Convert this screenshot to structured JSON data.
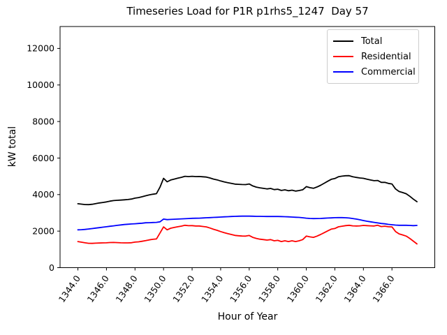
{
  "chart_data": {
    "type": "line",
    "title": "Timeseries Load for P1R p1rhs5_1247  Day 57",
    "xlabel": "Hour of Year",
    "ylabel": "kW total",
    "xlim": [
      1342.75,
      1369.0
    ],
    "ylim": [
      0,
      13200
    ],
    "x_ticks": [
      1344,
      1346,
      1348,
      1350,
      1352,
      1354,
      1356,
      1358,
      1360,
      1362,
      1364,
      1366
    ],
    "x_tick_labels": [
      "1344.0",
      "1346.0",
      "1348.0",
      "1350.0",
      "1352.0",
      "1354.0",
      "1356.0",
      "1358.0",
      "1360.0",
      "1362.0",
      "1364.0",
      "1366.0"
    ],
    "y_ticks": [
      0,
      2000,
      4000,
      6000,
      8000,
      10000,
      12000
    ],
    "y_tick_labels": [
      "0",
      "2000",
      "4000",
      "6000",
      "8000",
      "10000",
      "12000"
    ],
    "grid": false,
    "legend_position": "upper right",
    "x_start": 1344.0,
    "x_step": 0.25,
    "series": [
      {
        "name": "Total",
        "color": "#000000",
        "values": [
          3500,
          3475,
          3455,
          3450,
          3470,
          3505,
          3540,
          3570,
          3600,
          3640,
          3670,
          3685,
          3700,
          3715,
          3730,
          3755,
          3805,
          3835,
          3880,
          3935,
          3980,
          4020,
          4050,
          4410,
          4890,
          4700,
          4800,
          4850,
          4900,
          4945,
          5000,
          4985,
          5000,
          4985,
          4990,
          4975,
          4960,
          4910,
          4850,
          4805,
          4745,
          4695,
          4655,
          4615,
          4575,
          4560,
          4550,
          4545,
          4580,
          4475,
          4410,
          4370,
          4340,
          4310,
          4335,
          4270,
          4295,
          4225,
          4260,
          4210,
          4240,
          4190,
          4220,
          4265,
          4435,
          4380,
          4345,
          4415,
          4510,
          4620,
          4730,
          4835,
          4880,
          4975,
          5010,
          5030,
          5035,
          4980,
          4940,
          4910,
          4890,
          4840,
          4800,
          4760,
          4770,
          4670,
          4670,
          4610,
          4580,
          4310,
          4170,
          4110,
          4045,
          3910,
          3750,
          3610
        ]
      },
      {
        "name": "Residential",
        "color": "#ff0000",
        "values": [
          1430,
          1395,
          1360,
          1335,
          1330,
          1340,
          1350,
          1355,
          1360,
          1375,
          1380,
          1370,
          1360,
          1355,
          1355,
          1365,
          1400,
          1415,
          1445,
          1480,
          1520,
          1550,
          1570,
          1900,
          2230,
          2070,
          2160,
          2200,
          2240,
          2275,
          2320,
          2295,
          2300,
          2280,
          2280,
          2255,
          2230,
          2170,
          2100,
          2045,
          1975,
          1915,
          1865,
          1815,
          1765,
          1745,
          1730,
          1725,
          1760,
          1660,
          1600,
          1560,
          1535,
          1510,
          1535,
          1470,
          1495,
          1430,
          1470,
          1430,
          1470,
          1430,
          1470,
          1535,
          1725,
          1685,
          1660,
          1725,
          1815,
          1915,
          2015,
          2110,
          2145,
          2235,
          2270,
          2300,
          2320,
          2290,
          2280,
          2290,
          2310,
          2300,
          2290,
          2280,
          2320,
          2250,
          2270,
          2240,
          2230,
          1980,
          1850,
          1790,
          1725,
          1600,
          1450,
          1300
        ]
      },
      {
        "name": "Commercial",
        "color": "#0000ff",
        "values": [
          2070,
          2080,
          2095,
          2115,
          2140,
          2165,
          2190,
          2215,
          2240,
          2265,
          2290,
          2315,
          2340,
          2360,
          2375,
          2390,
          2405,
          2420,
          2435,
          2455,
          2460,
          2470,
          2480,
          2510,
          2660,
          2630,
          2640,
          2650,
          2660,
          2670,
          2680,
          2690,
          2700,
          2705,
          2710,
          2720,
          2730,
          2740,
          2750,
          2760,
          2770,
          2780,
          2790,
          2800,
          2810,
          2815,
          2820,
          2820,
          2820,
          2815,
          2810,
          2810,
          2805,
          2800,
          2800,
          2800,
          2800,
          2795,
          2790,
          2780,
          2770,
          2760,
          2750,
          2730,
          2710,
          2695,
          2685,
          2690,
          2695,
          2705,
          2715,
          2725,
          2735,
          2740,
          2740,
          2730,
          2715,
          2690,
          2660,
          2620,
          2580,
          2540,
          2510,
          2480,
          2450,
          2420,
          2400,
          2370,
          2350,
          2330,
          2320,
          2320,
          2320,
          2310,
          2300,
          2310
        ]
      }
    ]
  }
}
